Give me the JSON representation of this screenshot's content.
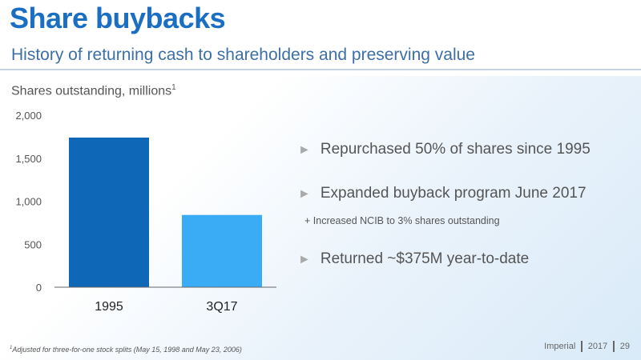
{
  "header": {
    "title": "Share buybacks",
    "subtitle": "History of returning cash to shareholders and preserving value"
  },
  "chart_title": {
    "text": "Shares outstanding, millions",
    "footnote_marker": "1"
  },
  "chart_data": {
    "type": "bar",
    "categories": [
      "1995",
      "3Q17"
    ],
    "values": [
      1740,
      840
    ],
    "colors": [
      "#0f67b8",
      "#3aabf5"
    ],
    "ylim": [
      0,
      2000
    ],
    "yticks": [
      0,
      500,
      1000,
      1500,
      2000
    ],
    "ytick_labels": [
      "0",
      "500",
      "1,000",
      "1,500",
      "2,000"
    ],
    "title": "Shares outstanding, millions",
    "xlabel": "",
    "ylabel": "",
    "grid": false
  },
  "bullets": [
    {
      "icon": "triangle-right-icon",
      "text": "Repurchased 50% of shares since 1995"
    },
    {
      "icon": "triangle-right-icon",
      "text": "Expanded buyback program June 2017"
    },
    {
      "icon": "triangle-right-icon",
      "text": "Returned ~$375M year-to-date"
    }
  ],
  "sub_bullet": "+ Increased NCIB to 3% shares outstanding",
  "footnote": {
    "marker": "1",
    "text": "Adjusted for three-for-one stock splits (May 15, 1998 and May 23, 2006)"
  },
  "footer": {
    "company": "Imperial",
    "year": "2017",
    "page": "29"
  }
}
